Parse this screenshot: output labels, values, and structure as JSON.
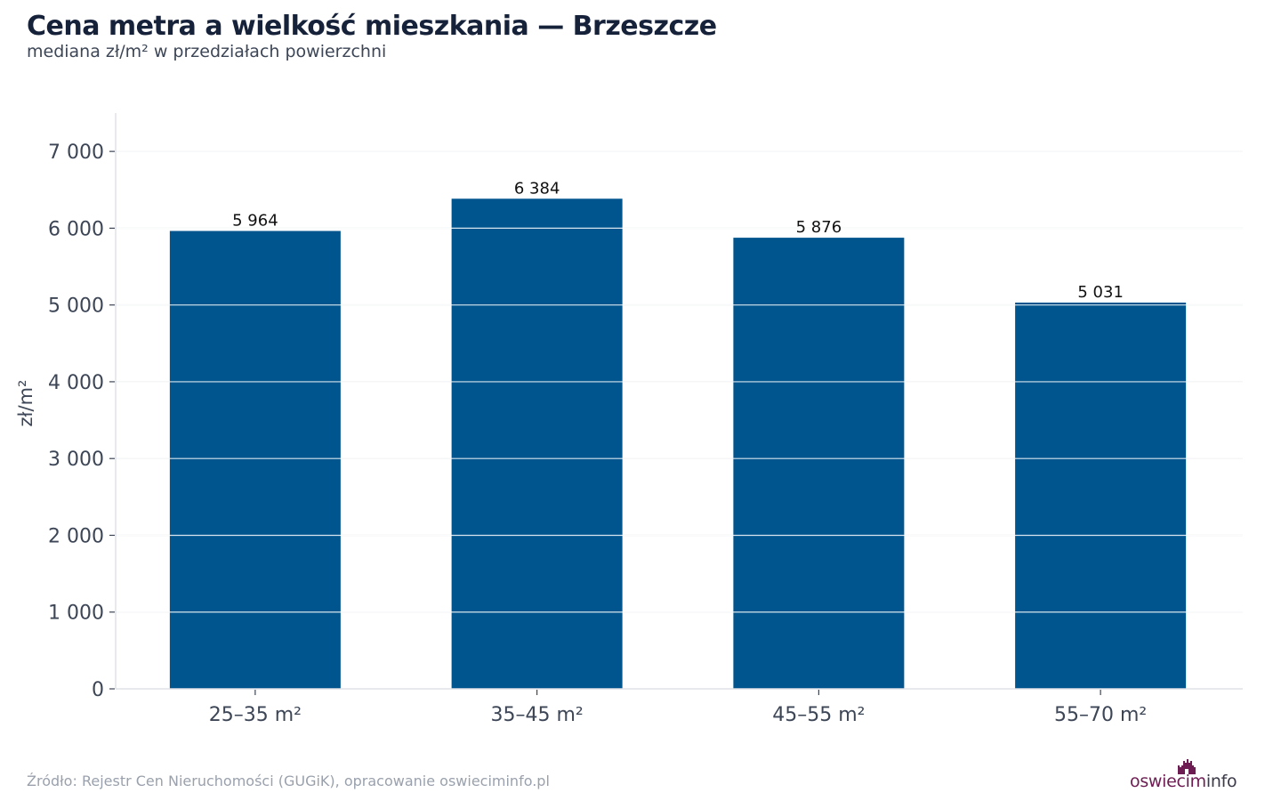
{
  "title": "Cena metra a wielkość mieszkania — Brzeszcze",
  "subtitle": "mediana zł/m² w przedziałach powierzchni",
  "source": "Źródło: Rejestr Cen Nieruchomości (GUGiK), opracowanie oswieciminfo.pl",
  "logo": {
    "part1": "oswiecim",
    "part2": "info"
  },
  "colors": {
    "bar": "#00558f",
    "grid": "#e4e6ea",
    "text": "#16213a",
    "tick_text": "#3d4656",
    "logo_accent": "#6d1d52"
  },
  "chart_data": {
    "type": "bar",
    "categories": [
      "25–35 m²",
      "35–45 m²",
      "45–55 m²",
      "55–70 m²"
    ],
    "values": [
      5964,
      6384,
      5876,
      5031
    ],
    "value_labels": [
      "5 964",
      "6 384",
      "5 876",
      "5 031"
    ],
    "title": "Cena metra a wielkość mieszkania — Brzeszcze",
    "subtitle": "mediana zł/m² w przedziałach powierzchni",
    "xlabel": "",
    "ylabel": "zł/m²",
    "ylim": [
      0,
      7500
    ],
    "yticks": [
      0,
      1000,
      2000,
      3000,
      4000,
      5000,
      6000,
      7000
    ],
    "ytick_labels": [
      "0",
      "1 000",
      "2 000",
      "3 000",
      "4 000",
      "5 000",
      "6 000",
      "7 000"
    ],
    "grid": true,
    "legend": "none"
  }
}
